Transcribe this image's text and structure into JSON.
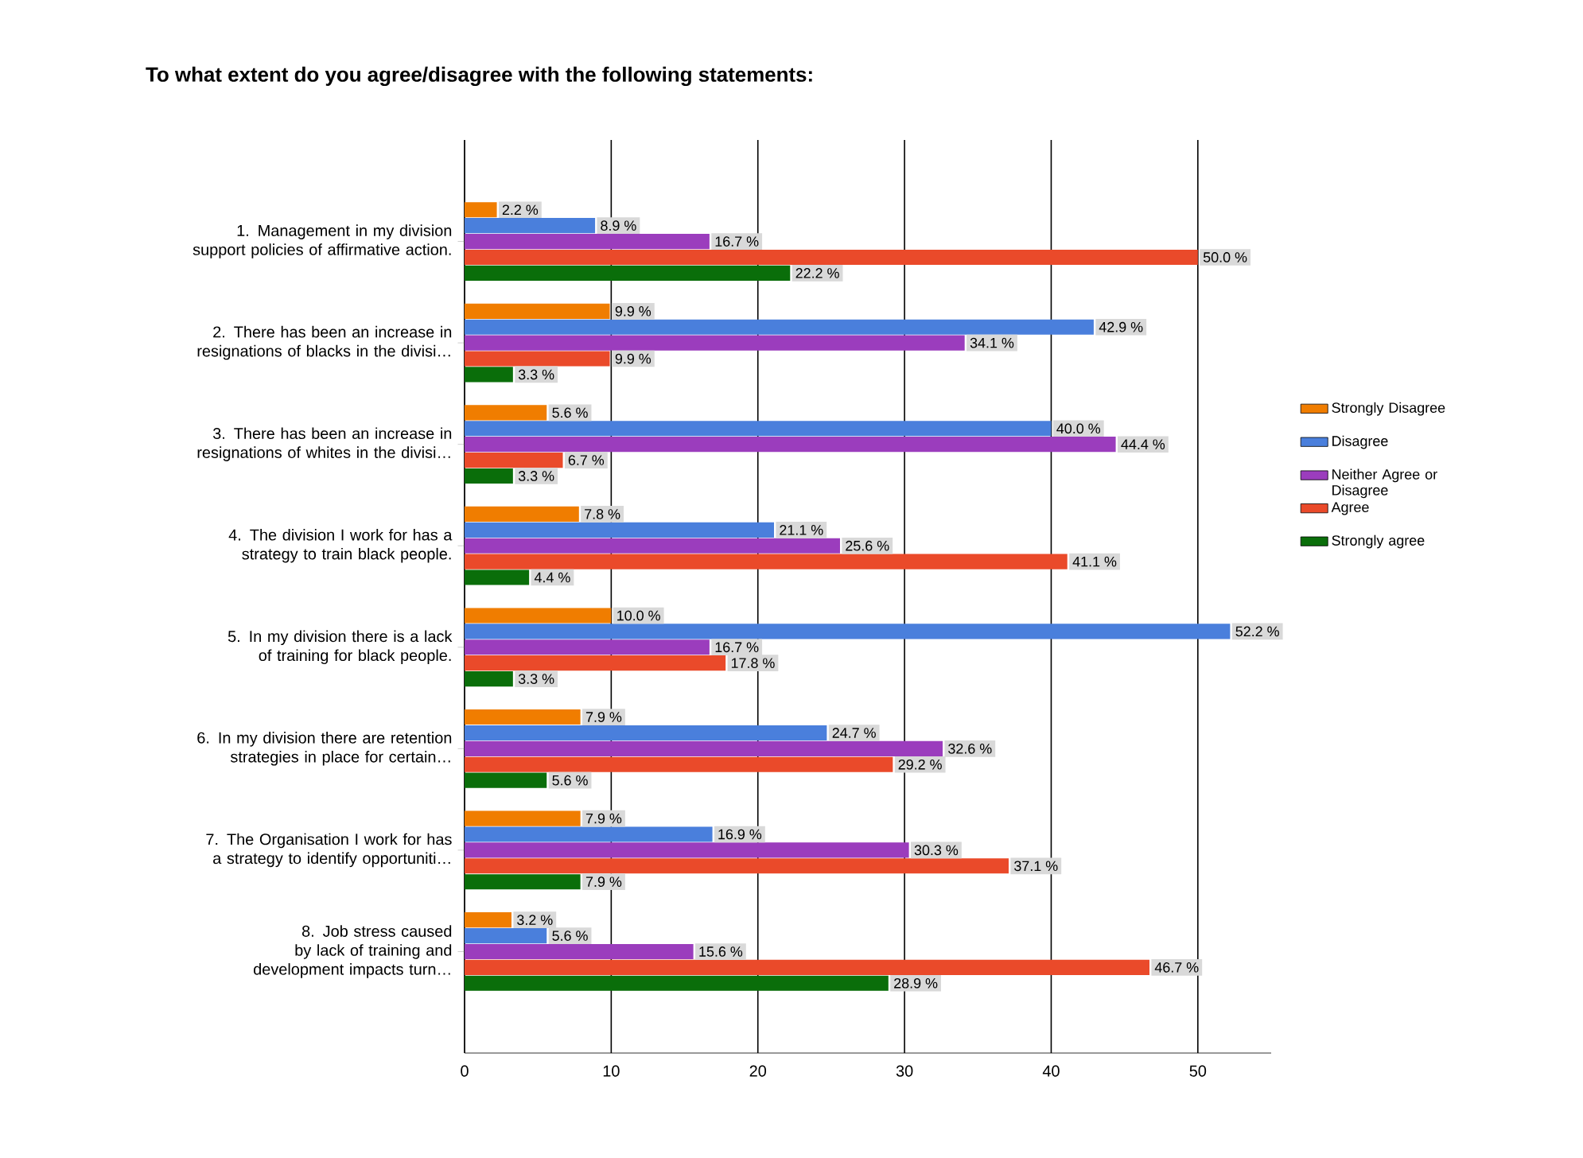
{
  "chart_data": {
    "type": "bar",
    "orientation": "horizontal",
    "title": "To what extent do you agree/disagree with the following statements:",
    "categories": [
      "1. Management in my division support policies of affirmative action.",
      "2. There has been an increase in resignations of blacks in the divisi…",
      "3. There has been an increase in resignations of whites in the divisi…",
      "4. The division I work for has a strategy to train black people.",
      "5. In my division there is a lack of training for black people.",
      "6. In my division there are retention strategies in place for certain…",
      "7. The Organisation I work for has a strategy to identify opportuniti…",
      "8. Job stress caused by lack of training and development impacts turn…"
    ],
    "series": [
      {
        "name": "Strongly Disagree",
        "color": "#f07d00",
        "values": [
          2.2,
          9.9,
          5.6,
          7.8,
          10.0,
          7.9,
          7.9,
          3.2
        ],
        "value_labels": [
          "2.2 %",
          "9.9 %",
          "5.6 %",
          "7.8 %",
          "10.0 %",
          "7.9 %",
          "7.9 %",
          "3.2 %"
        ]
      },
      {
        "name": "Disagree",
        "color": "#4a7fdc",
        "values": [
          8.9,
          42.9,
          40.0,
          21.1,
          52.2,
          24.7,
          16.9,
          5.6
        ],
        "value_labels": [
          "8.9 %",
          "42.9 %",
          "40.0 %",
          "21.1 %",
          "52.2 %",
          "24.7 %",
          "16.9 %",
          "5.6 %"
        ]
      },
      {
        "name": "Neither Agree or Disagree",
        "color": "#9b3dbd",
        "values": [
          16.7,
          34.1,
          44.4,
          25.6,
          16.7,
          32.6,
          30.3,
          15.6
        ],
        "value_labels": [
          "16.7 %",
          "34.1 %",
          "44.4 %",
          "25.6 %",
          "16.7 %",
          "32.6 %",
          "30.3 %",
          "15.6 %"
        ]
      },
      {
        "name": "Agree",
        "color": "#ea4a2a",
        "values": [
          50.0,
          9.9,
          6.7,
          41.1,
          17.8,
          29.2,
          37.1,
          46.7
        ],
        "value_labels": [
          "50.0 %",
          "9.9 %",
          "6.7 %",
          "41.1 %",
          "17.8 %",
          "29.2 %",
          "37.1 %",
          "46.7 %"
        ]
      },
      {
        "name": "Strongly agree",
        "color": "#0a6e0a",
        "values": [
          22.2,
          3.3,
          3.3,
          4.4,
          3.3,
          5.6,
          7.9,
          28.9
        ],
        "value_labels": [
          "22.2 %",
          "3.3 %",
          "3.3 %",
          "4.4 %",
          "3.3 %",
          "5.6 %",
          "7.9 %",
          "28.9 %"
        ]
      }
    ],
    "xlim": [
      0,
      55
    ],
    "xticks": [
      0,
      10,
      20,
      30,
      40,
      50
    ],
    "grid": "x",
    "legend": "right"
  }
}
